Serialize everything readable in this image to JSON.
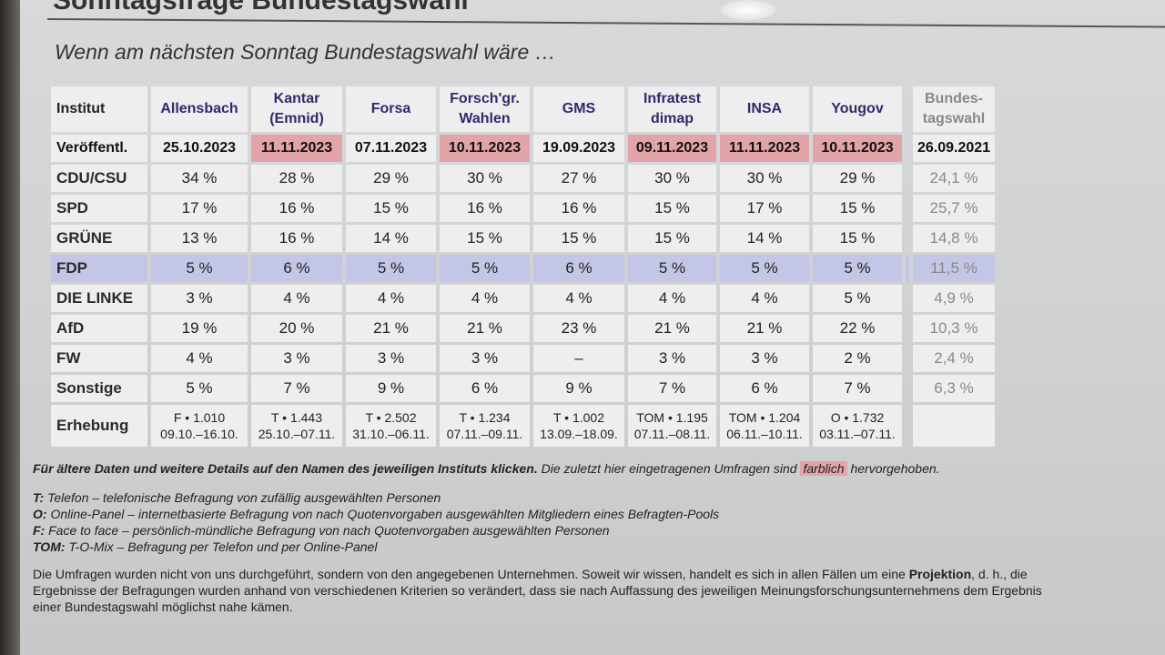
{
  "page_title": "Sonntagsfrage Bundestagswahl",
  "subtitle": "Wenn am nächsten Sonntag Bundestagswahl wäre …",
  "table": {
    "header_label": "Institut",
    "institutes": [
      {
        "name": "Allensbach",
        "published": "25.10.2023",
        "highlight": false,
        "survey_method": "F • 1.010",
        "survey_period": "09.10.–16.10."
      },
      {
        "name": "Kantar (Emnid)",
        "published": "11.11.2023",
        "highlight": true,
        "survey_method": "T • 1.443",
        "survey_period": "25.10.–07.11."
      },
      {
        "name": "Forsa",
        "published": "07.11.2023",
        "highlight": false,
        "survey_method": "T • 2.502",
        "survey_period": "31.10.–06.11."
      },
      {
        "name": "Forsch'gr. Wahlen",
        "published": "10.11.2023",
        "highlight": true,
        "survey_method": "T • 1.234",
        "survey_period": "07.11.–09.11."
      },
      {
        "name": "GMS",
        "published": "19.09.2023",
        "highlight": false,
        "survey_method": "T • 1.002",
        "survey_period": "13.09.–18.09."
      },
      {
        "name": "Infratest dimap",
        "published": "09.11.2023",
        "highlight": true,
        "survey_method": "TOM • 1.195",
        "survey_period": "07.11.–08.11."
      },
      {
        "name": "INSA",
        "published": "11.11.2023",
        "highlight": true,
        "survey_method": "TOM • 1.204",
        "survey_period": "06.11.–10.11."
      },
      {
        "name": "Yougov",
        "published": "10.11.2023",
        "highlight": true,
        "survey_method": "O • 1.732",
        "survey_period": "03.11.–07.11."
      }
    ],
    "election": {
      "name": "Bundes-tagswahl",
      "published": "26.09.2021"
    },
    "published_label": "Veröffentl.",
    "survey_label": "Erhebung",
    "parties": [
      {
        "name": "CDU/CSU",
        "values": [
          "34 %",
          "28 %",
          "29 %",
          "30 %",
          "27 %",
          "30 %",
          "30 %",
          "29 %"
        ],
        "election": "24,1 %"
      },
      {
        "name": "SPD",
        "values": [
          "17 %",
          "16 %",
          "15 %",
          "16 %",
          "16 %",
          "15 %",
          "17 %",
          "15 %"
        ],
        "election": "25,7 %"
      },
      {
        "name": "GRÜNE",
        "values": [
          "13 %",
          "16 %",
          "14 %",
          "15 %",
          "15 %",
          "15 %",
          "14 %",
          "15 %"
        ],
        "election": "14,8 %"
      },
      {
        "name": "FDP",
        "values": [
          "5 %",
          "6 %",
          "5 %",
          "5 %",
          "6 %",
          "5 %",
          "5 %",
          "5 %"
        ],
        "election": "11,5 %"
      },
      {
        "name": "DIE LINKE",
        "values": [
          "3 %",
          "4 %",
          "4 %",
          "4 %",
          "4 %",
          "4 %",
          "4 %",
          "5 %"
        ],
        "election": "4,9 %"
      },
      {
        "name": "AfD",
        "values": [
          "19 %",
          "20 %",
          "21 %",
          "21 %",
          "23 %",
          "21 %",
          "21 %",
          "22 %"
        ],
        "election": "10,3 %"
      },
      {
        "name": "FW",
        "values": [
          "4 %",
          "3 %",
          "3 %",
          "3 %",
          "–",
          "3 %",
          "3 %",
          "2 %"
        ],
        "election": "2,4 %"
      },
      {
        "name": "Sonstige",
        "values": [
          "5 %",
          "7 %",
          "9 %",
          "6 %",
          "9 %",
          "7 %",
          "6 %",
          "7 %"
        ],
        "election": "6,3 %"
      }
    ]
  },
  "notes": {
    "intro_bold": "Für ältere Daten und weitere Details auf den Namen des jeweiligen Instituts klicken.",
    "intro_rest": " Die zuletzt hier eingetragenen Umfragen sind ",
    "highlight_word": "farblich",
    "intro_end": " hervorgehoben.",
    "legend": [
      {
        "key": "T:",
        "text": "Telefon – telefonische Befragung von zufällig ausgewählten Personen"
      },
      {
        "key": "O:",
        "text": "Online-Panel – internetbasierte Befragung von nach Quotenvorgaben ausgewählten Mitgliedern eines Befragten-Pools"
      },
      {
        "key": "F:",
        "text": "Face to face – persönlich-mündliche Befragung von nach Quotenvorgaben ausgewählten Personen"
      },
      {
        "key": "TOM:",
        "text": "T-O-Mix – Befragung per Telefon und per Online-Panel"
      }
    ],
    "disclaimer_1": "Die Umfragen wurden nicht von uns durchgeführt, sondern von den angegebenen Unternehmen. Soweit wir wissen, handelt es sich in allen Fällen um eine ",
    "disclaimer_bold": "Projektion",
    "disclaimer_2": ", d. h., die Ergebnisse der Befragungen wurden anhand von verschiedenen Kriterien so verändert, dass sie nach Auffassung des jeweiligen Meinungsforschungsunternehmens dem Ergebnis einer Bundestagswahl möglichst nahe kämen."
  }
}
